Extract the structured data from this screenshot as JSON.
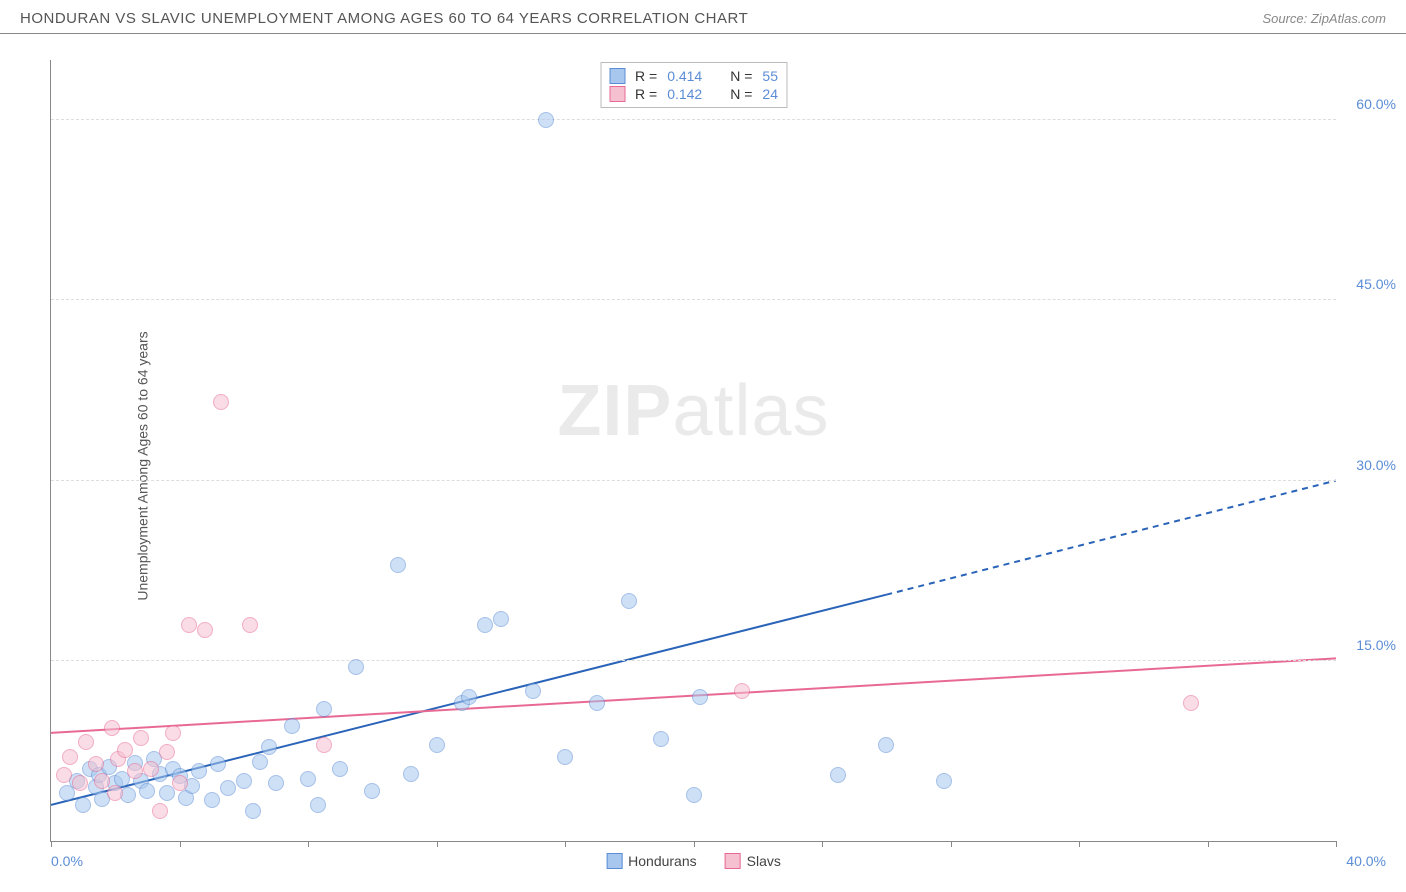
{
  "header": {
    "title": "HONDURAN VS SLAVIC UNEMPLOYMENT AMONG AGES 60 TO 64 YEARS CORRELATION CHART",
    "source_prefix": "Source: ",
    "source_name": "ZipAtlas.com"
  },
  "watermark": {
    "bold": "ZIP",
    "light": "atlas"
  },
  "chart": {
    "type": "scatter",
    "y_axis_label": "Unemployment Among Ages 60 to 64 years",
    "background_color": "#ffffff",
    "grid_color": "#dddddd",
    "axis_color": "#888888",
    "xlim": [
      0,
      40
    ],
    "ylim": [
      0,
      65
    ],
    "x_ticks": [
      0,
      4,
      8,
      12,
      16,
      20,
      24,
      28,
      32,
      36,
      40
    ],
    "x_tick_labels": {
      "min": "0.0%",
      "max": "40.0%"
    },
    "y_gridlines": [
      15,
      30,
      45,
      60
    ],
    "y_tick_labels": [
      "15.0%",
      "30.0%",
      "45.0%",
      "60.0%"
    ],
    "point_radius": 8,
    "point_opacity": 0.55,
    "series": [
      {
        "name": "Hondurans",
        "fill": "#a7c7ee",
        "stroke": "#5b8dd6",
        "trend_color": "#2a64b8",
        "trend": {
          "x1": 0,
          "y1": 3.0,
          "x2_solid": 26,
          "y2_solid": 20.5,
          "x2": 40,
          "y2": 30.0
        },
        "R": "0.414",
        "N": "55",
        "points": [
          [
            0.5,
            4
          ],
          [
            0.8,
            5
          ],
          [
            1.0,
            3
          ],
          [
            1.2,
            6
          ],
          [
            1.4,
            4.5
          ],
          [
            1.5,
            5.5
          ],
          [
            1.6,
            3.5
          ],
          [
            1.8,
            6.2
          ],
          [
            2.0,
            4.8
          ],
          [
            2.2,
            5.2
          ],
          [
            2.4,
            3.8
          ],
          [
            2.6,
            6.5
          ],
          [
            2.8,
            5.0
          ],
          [
            3.0,
            4.2
          ],
          [
            3.2,
            6.8
          ],
          [
            3.4,
            5.6
          ],
          [
            3.6,
            4.0
          ],
          [
            3.8,
            6.0
          ],
          [
            4.0,
            5.4
          ],
          [
            4.2,
            3.6
          ],
          [
            4.4,
            4.6
          ],
          [
            4.6,
            5.8
          ],
          [
            5.0,
            3.4
          ],
          [
            5.2,
            6.4
          ],
          [
            5.5,
            4.4
          ],
          [
            6.0,
            5.0
          ],
          [
            6.3,
            2.5
          ],
          [
            6.5,
            6.6
          ],
          [
            6.8,
            7.8
          ],
          [
            7.0,
            4.8
          ],
          [
            7.5,
            9.6
          ],
          [
            8.0,
            5.2
          ],
          [
            8.3,
            3.0
          ],
          [
            8.5,
            11.0
          ],
          [
            9.0,
            6.0
          ],
          [
            9.5,
            14.5
          ],
          [
            10.0,
            4.2
          ],
          [
            10.8,
            23.0
          ],
          [
            11.2,
            5.6
          ],
          [
            12.0,
            8.0
          ],
          [
            12.8,
            11.5
          ],
          [
            13.0,
            12.0
          ],
          [
            13.5,
            18.0
          ],
          [
            14.0,
            18.5
          ],
          [
            15.0,
            12.5
          ],
          [
            15.4,
            60.0
          ],
          [
            16.0,
            7.0
          ],
          [
            17.0,
            11.5
          ],
          [
            18.0,
            20.0
          ],
          [
            19.0,
            8.5
          ],
          [
            20.0,
            3.8
          ],
          [
            20.2,
            12.0
          ],
          [
            24.5,
            5.5
          ],
          [
            26.0,
            8.0
          ],
          [
            27.8,
            5.0
          ]
        ]
      },
      {
        "name": "Slavs",
        "fill": "#f5c0d0",
        "stroke": "#e86a94",
        "trend_color": "#e86a94",
        "trend": {
          "x1": 0,
          "y1": 9.0,
          "x2_solid": 40,
          "y2_solid": 15.2,
          "x2": 40,
          "y2": 15.2
        },
        "R": "0.142",
        "N": "24",
        "points": [
          [
            0.4,
            5.5
          ],
          [
            0.6,
            7.0
          ],
          [
            0.9,
            4.8
          ],
          [
            1.1,
            8.2
          ],
          [
            1.4,
            6.4
          ],
          [
            1.6,
            5.0
          ],
          [
            1.9,
            9.4
          ],
          [
            2.1,
            6.8
          ],
          [
            2.3,
            7.6
          ],
          [
            2.6,
            5.8
          ],
          [
            2.8,
            8.6
          ],
          [
            3.1,
            6.0
          ],
          [
            3.4,
            2.5
          ],
          [
            3.6,
            7.4
          ],
          [
            3.8,
            9.0
          ],
          [
            4.0,
            4.8
          ],
          [
            4.3,
            18.0
          ],
          [
            4.8,
            17.6
          ],
          [
            5.3,
            36.5
          ],
          [
            6.2,
            18.0
          ],
          [
            8.5,
            8.0
          ],
          [
            21.5,
            12.5
          ],
          [
            35.5,
            11.5
          ],
          [
            2.0,
            4.0
          ]
        ]
      }
    ],
    "legend_top": {
      "r_label": "R =",
      "n_label": "N ="
    },
    "legend_bottom": {
      "items": [
        "Hondurans",
        "Slavs"
      ]
    }
  }
}
